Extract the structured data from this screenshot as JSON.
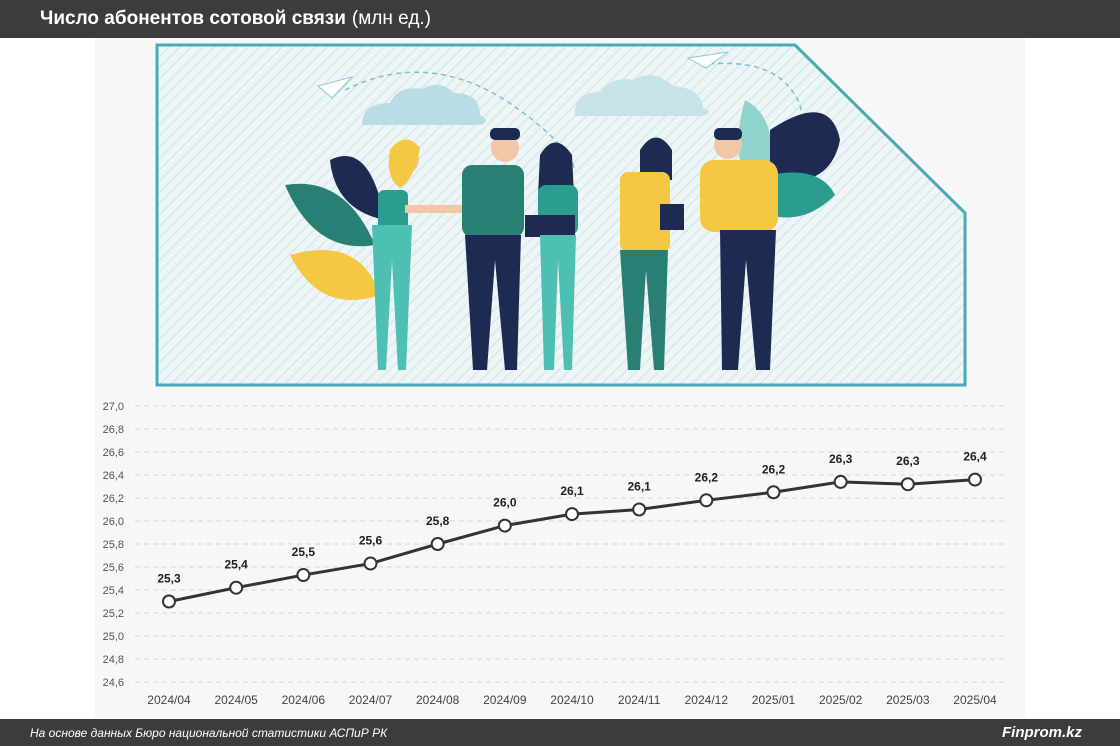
{
  "header": {
    "title_bold": "Число абонентов сотовой связи",
    "title_unit": "(млн ед.)"
  },
  "footer": {
    "source": "На основе данных Бюро национальной статистики АСПиР РК",
    "brand": "Finprom.kz"
  },
  "colors": {
    "header_bg": "#3c3c3c",
    "line": "#333333",
    "marker_fill": "#ffffff",
    "illustration_border": "#4aa9b8",
    "teal": "#2a9d8f",
    "yellow": "#f4c842",
    "navy": "#1d2b53"
  },
  "chart_data": {
    "type": "line",
    "categories": [
      "2024/04",
      "2024/05",
      "2024/06",
      "2024/07",
      "2024/08",
      "2024/09",
      "2024/10",
      "2024/11",
      "2024/12",
      "2025/01",
      "2025/02",
      "2025/03",
      "2025/04"
    ],
    "series": [
      {
        "values": [
          25.3,
          25.42,
          25.53,
          25.63,
          25.8,
          25.96,
          26.06,
          26.1,
          26.18,
          26.25,
          26.34,
          26.32,
          26.36
        ],
        "labels": [
          "25,3",
          "25,4",
          "25,5",
          "25,6",
          "25,8",
          "26,0",
          "26,1",
          "26,1",
          "26,2",
          "26,2",
          "26,3",
          "26,3",
          "26,4"
        ]
      }
    ],
    "ylim": [
      24.6,
      27.0
    ],
    "yticks": [
      "27,0",
      "26,8",
      "26,6",
      "26,4",
      "26,2",
      "26,0",
      "25,8",
      "25,6",
      "25,4",
      "25,2",
      "25,0",
      "24,8",
      "24,6"
    ],
    "ytick_values": [
      27.0,
      26.8,
      26.6,
      26.4,
      26.2,
      26.0,
      25.8,
      25.6,
      25.4,
      25.2,
      25.0,
      24.8,
      24.6
    ],
    "grid": true,
    "legend": "none"
  }
}
